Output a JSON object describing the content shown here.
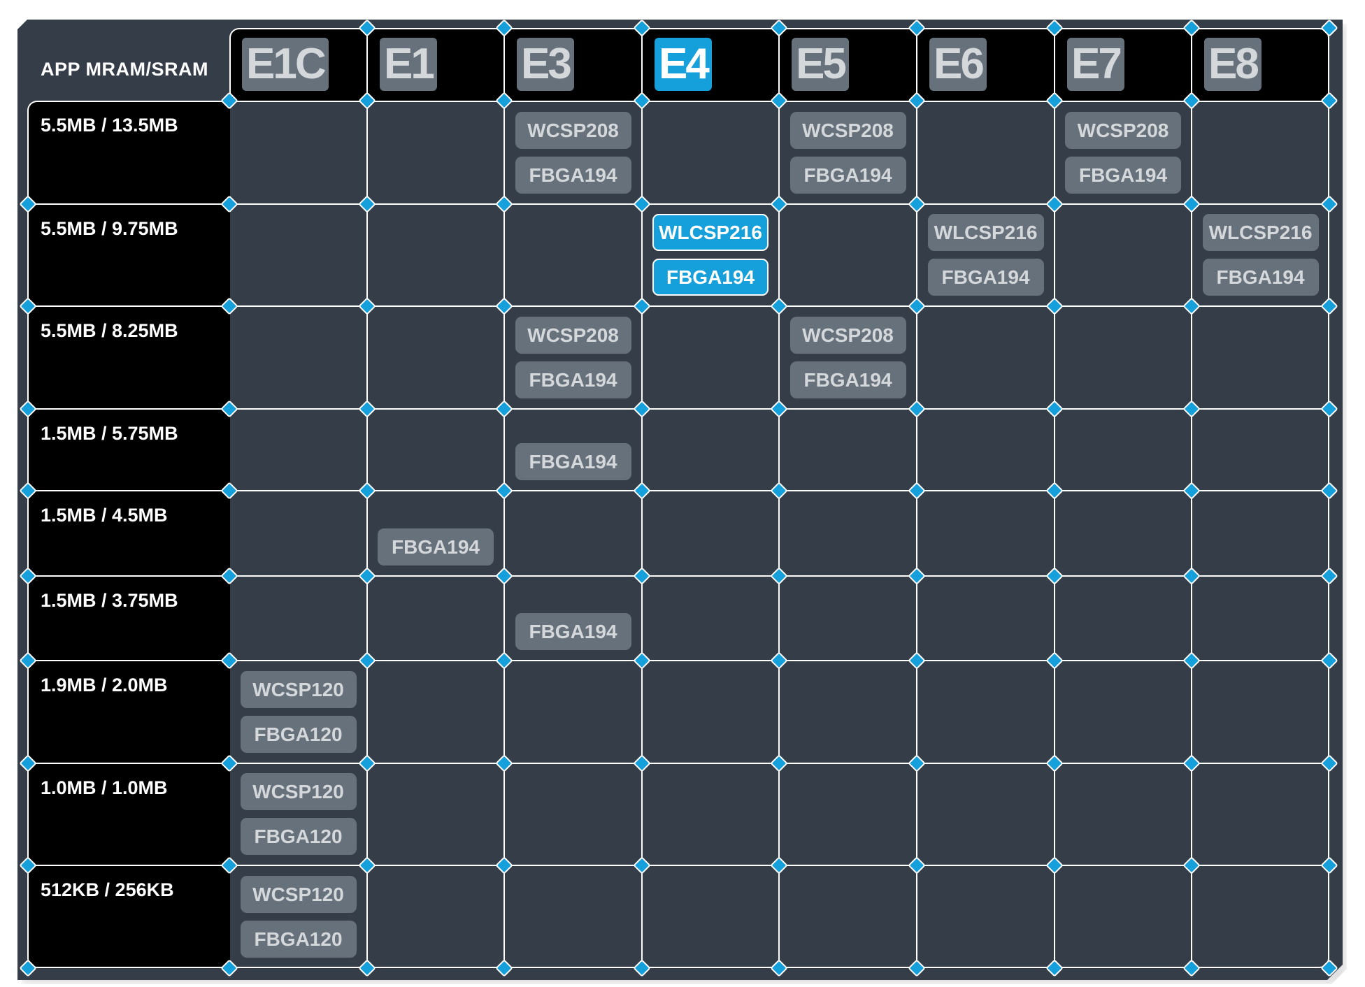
{
  "corner_label": "APP MRAM/SRAM",
  "colors": {
    "panel": "#343d48",
    "chip": "#66717b",
    "chip_text": "#d5d8db",
    "accent": "#159fdb",
    "label_bg": "#000000"
  },
  "columns": [
    {
      "name": "E1C",
      "highlighted": false
    },
    {
      "name": "E1",
      "highlighted": false
    },
    {
      "name": "E3",
      "highlighted": false
    },
    {
      "name": "E4",
      "highlighted": true
    },
    {
      "name": "E5",
      "highlighted": false
    },
    {
      "name": "E6",
      "highlighted": false
    },
    {
      "name": "E7",
      "highlighted": false
    },
    {
      "name": "E8",
      "highlighted": false
    }
  ],
  "rows": [
    {
      "label": "5.5MB / 13.5MB",
      "cells": {
        "E3": [
          "WCSP208",
          "FBGA194"
        ],
        "E5": [
          "WCSP208",
          "FBGA194"
        ],
        "E7": [
          "WCSP208",
          "FBGA194"
        ]
      }
    },
    {
      "label": "5.5MB / 9.75MB",
      "cells": {
        "E4": [
          "WLCSP216",
          "FBGA194"
        ],
        "E6": [
          "WLCSP216",
          "FBGA194"
        ],
        "E8": [
          "WLCSP216",
          "FBGA194"
        ]
      }
    },
    {
      "label": "5.5MB / 8.25MB",
      "cells": {
        "E3": [
          "WCSP208",
          "FBGA194"
        ],
        "E5": [
          "WCSP208",
          "FBGA194"
        ]
      }
    },
    {
      "label": "1.5MB / 5.75MB",
      "cells": {
        "E3": [
          "FBGA194"
        ]
      }
    },
    {
      "label": "1.5MB / 4.5MB",
      "cells": {
        "E1": [
          "FBGA194"
        ]
      }
    },
    {
      "label": "1.5MB / 3.75MB",
      "cells": {
        "E3": [
          "FBGA194"
        ]
      }
    },
    {
      "label": "1.9MB / 2.0MB",
      "cells": {
        "E1C": [
          "WCSP120",
          "FBGA120"
        ]
      }
    },
    {
      "label": "1.0MB / 1.0MB",
      "cells": {
        "E1C": [
          "WCSP120",
          "FBGA120"
        ]
      }
    },
    {
      "label": "512KB / 256KB",
      "cells": {
        "E1C": [
          "WCSP120",
          "FBGA120"
        ]
      }
    }
  ]
}
